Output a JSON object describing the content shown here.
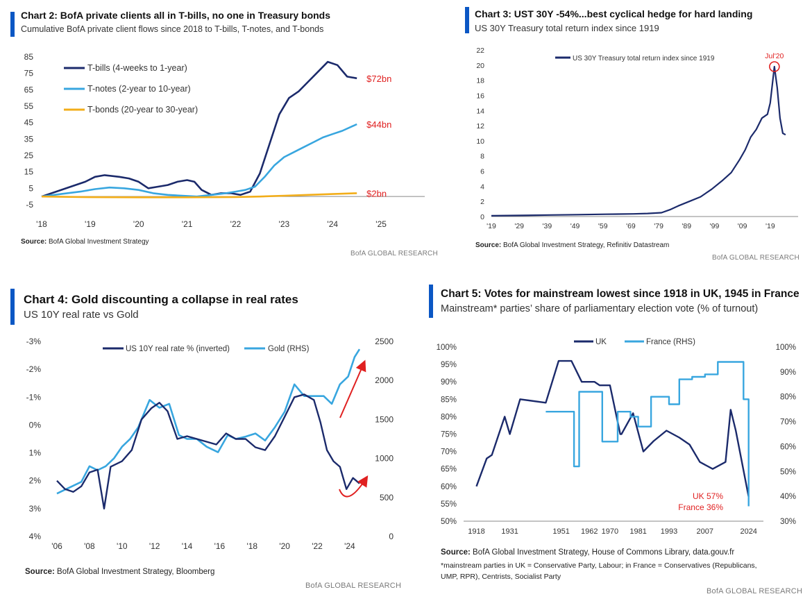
{
  "chart_data": [
    {
      "type": "line",
      "title": "Chart 2: BofA private clients all in T-bills, no one in Treasury bonds",
      "subtitle": "Cumulative BofA private client flows since 2018 to T-bills, T-notes, and T-bonds",
      "source_label": "Source:",
      "source": "BofA Global Investment Strategy",
      "brand": "BofA GLOBAL RESEARCH",
      "xlabel": "",
      "ylabel": "",
      "x_range": [
        2018,
        2025.9
      ],
      "ylim": [
        -5,
        85
      ],
      "yticks": [
        "85",
        "75",
        "65",
        "55",
        "45",
        "35",
        "25",
        "15",
        "5",
        "-5"
      ],
      "ytick_values": [
        85,
        75,
        65,
        55,
        45,
        35,
        25,
        15,
        5,
        -5
      ],
      "xticks": [
        "'18",
        "'19",
        "'20",
        "'21",
        "'22",
        "'23",
        "'24",
        "'25"
      ],
      "xtick_values": [
        2018,
        2019,
        2020,
        2021,
        2022,
        2023,
        2024,
        2025
      ],
      "grid": false,
      "legend_position": "top-left",
      "series": [
        {
          "name": "T-bills (4-weeks to 1-year)",
          "color": "#1b2a6b",
          "x": [
            2018,
            2018.3,
            2018.6,
            2018.9,
            2019.1,
            2019.3,
            2019.6,
            2019.8,
            2020.0,
            2020.2,
            2020.4,
            2020.6,
            2020.8,
            2021.0,
            2021.15,
            2021.3,
            2021.5,
            2021.7,
            2021.9,
            2022.1,
            2022.3,
            2022.5,
            2022.7,
            2022.9,
            2023.1,
            2023.3,
            2023.5,
            2023.7,
            2023.9,
            2024.1,
            2024.3,
            2024.5
          ],
          "y": [
            0,
            3,
            6,
            9,
            12,
            13,
            12,
            11,
            9,
            5,
            6,
            7,
            9,
            10,
            9,
            4,
            1,
            2,
            2,
            1,
            3,
            14,
            32,
            50,
            60,
            64,
            70,
            76,
            82,
            80,
            73,
            72
          ]
        },
        {
          "name": "T-notes (2-year to 10-year)",
          "color": "#38a6df",
          "x": [
            2018,
            2018.4,
            2018.8,
            2019.1,
            2019.4,
            2019.7,
            2020.0,
            2020.3,
            2020.6,
            2020.9,
            2021.2,
            2021.5,
            2021.8,
            2022.0,
            2022.2,
            2022.4,
            2022.6,
            2022.8,
            2023.0,
            2023.2,
            2023.4,
            2023.6,
            2023.8,
            2024.0,
            2024.2,
            2024.5
          ],
          "y": [
            0,
            1.5,
            3,
            4.5,
            5.5,
            5,
            4,
            2,
            1,
            0.5,
            0,
            1,
            2,
            3,
            4,
            6,
            12,
            19,
            24,
            27,
            30,
            33,
            36,
            38,
            40,
            44
          ]
        },
        {
          "name": "T-bonds (20-year to 30-year)",
          "color": "#f2ad19",
          "x": [
            2018,
            2019,
            2020,
            2021,
            2022,
            2022.5,
            2023,
            2023.5,
            2024,
            2024.5
          ],
          "y": [
            0,
            -0.4,
            -0.5,
            -0.5,
            -0.3,
            0,
            0.5,
            1,
            1.5,
            2
          ]
        }
      ],
      "end_labels": [
        "$72bn",
        "$44bn",
        "$2bn"
      ]
    },
    {
      "type": "line",
      "title": "Chart 3: UST 30Y -54%...best cyclical hedge for hard landing",
      "subtitle": "US 30Y Treasury total return index since 1919",
      "source_label": "Source:",
      "source": "BofA Global Investment Strategy, Refinitiv Datastream",
      "brand": "BofA GLOBAL RESEARCH",
      "xlabel": "",
      "ylabel": "",
      "x_range": [
        1919,
        2029
      ],
      "ylim": [
        0,
        22
      ],
      "yticks": [
        "22",
        "20",
        "18",
        "16",
        "14",
        "12",
        "10",
        "8",
        "6",
        "4",
        "2",
        "0"
      ],
      "ytick_values": [
        22,
        20,
        18,
        16,
        14,
        12,
        10,
        8,
        6,
        4,
        2,
        0
      ],
      "xticks": [
        "'19",
        "'29",
        "'39",
        "'49",
        "'59",
        "'69",
        "'79",
        "'89",
        "'99",
        "'09",
        "'19"
      ],
      "xtick_values": [
        1919,
        1929,
        1939,
        1949,
        1959,
        1969,
        1979,
        1989,
        1999,
        2009,
        2019
      ],
      "grid": false,
      "legend_position": "top-center",
      "series": [
        {
          "name": "US 30Y Treasury total return index since 1919",
          "color": "#1b2a6b",
          "x": [
            1919,
            1930,
            1940,
            1950,
            1960,
            1970,
            1975,
            1980,
            1983,
            1986,
            1990,
            1994,
            1998,
            2002,
            2005,
            2008,
            2010,
            2012,
            2014,
            2016,
            2018,
            2019,
            2020.5,
            2021.5,
            2022.5,
            2023.5,
            2024.5
          ],
          "y": [
            0.1,
            0.15,
            0.2,
            0.25,
            0.3,
            0.35,
            0.4,
            0.5,
            0.9,
            1.4,
            2.0,
            2.6,
            3.6,
            4.8,
            5.8,
            7.5,
            8.8,
            10.5,
            11.5,
            13,
            13.5,
            15,
            19.8,
            17,
            13,
            11,
            10.8
          ]
        }
      ],
      "annotation": "Jul'20"
    },
    {
      "type": "line",
      "title": "Chart 4: Gold discounting a collapse in real rates",
      "subtitle": "US 10Y real rate vs Gold",
      "source_label": "Source:",
      "source": "BofA Global Investment Strategy, Bloomberg",
      "brand": "BofA GLOBAL RESEARCH",
      "xlabel": "",
      "ylabel": "",
      "x_range": [
        2005.7,
        2024.9
      ],
      "ylim_left": [
        -3,
        4
      ],
      "left_inverted": true,
      "ylim_right": [
        0,
        2500
      ],
      "yticks_left": [
        "-3%",
        "-2%",
        "-1%",
        "0%",
        "1%",
        "2%",
        "3%",
        "4%"
      ],
      "ytick_values_left": [
        -3,
        -2,
        -1,
        0,
        1,
        2,
        3,
        4
      ],
      "yticks_right": [
        "2500",
        "2000",
        "1500",
        "1000",
        "500",
        "0"
      ],
      "ytick_values_right": [
        2500,
        2000,
        1500,
        1000,
        500,
        0
      ],
      "xticks": [
        "'06",
        "'08",
        "'10",
        "'12",
        "'14",
        "'16",
        "'18",
        "'20",
        "'22",
        "'24"
      ],
      "xtick_values": [
        2006,
        2008,
        2010,
        2012,
        2014,
        2016,
        2018,
        2020,
        2022,
        2024
      ],
      "grid": false,
      "legend_position": "top-center",
      "series": [
        {
          "name": "US 10Y real rate % (inverted)",
          "color": "#1b2a6b",
          "axis": "left",
          "x": [
            2006,
            2006.5,
            2007,
            2007.5,
            2008,
            2008.5,
            2008.9,
            2009.3,
            2010,
            2010.6,
            2011.2,
            2011.8,
            2012.3,
            2012.8,
            2013.4,
            2014,
            2014.6,
            2015.2,
            2015.8,
            2016.4,
            2017,
            2017.6,
            2018.2,
            2018.8,
            2019.4,
            2020,
            2020.6,
            2021.2,
            2021.8,
            2022.2,
            2022.6,
            2023,
            2023.4,
            2023.8,
            2024.2,
            2024.6
          ],
          "y": [
            2,
            2.3,
            2.4,
            2.2,
            1.7,
            1.6,
            3,
            1.5,
            1.3,
            0.9,
            -0.2,
            -0.6,
            -0.8,
            -0.5,
            0.5,
            0.4,
            0.5,
            0.6,
            0.7,
            0.3,
            0.5,
            0.5,
            0.8,
            0.9,
            0.4,
            -0.3,
            -1,
            -1.1,
            -0.9,
            -0.1,
            0.9,
            1.3,
            1.5,
            2.3,
            1.9,
            2.1
          ]
        },
        {
          "name": "Gold (RHS)",
          "color": "#38a6df",
          "axis": "right",
          "x": [
            2006,
            2006.5,
            2007,
            2007.5,
            2008,
            2008.5,
            2009,
            2009.5,
            2010,
            2010.5,
            2011,
            2011.7,
            2012.3,
            2012.9,
            2013.5,
            2014,
            2014.6,
            2015.2,
            2015.9,
            2016.5,
            2017,
            2017.6,
            2018.2,
            2018.8,
            2019.4,
            2020,
            2020.6,
            2021.2,
            2021.8,
            2022.4,
            2022.9,
            2023.4,
            2023.9,
            2024.3,
            2024.6
          ],
          "y": [
            550,
            600,
            650,
            700,
            900,
            850,
            900,
            1000,
            1150,
            1250,
            1400,
            1750,
            1650,
            1700,
            1300,
            1250,
            1250,
            1150,
            1080,
            1300,
            1250,
            1280,
            1320,
            1230,
            1400,
            1600,
            1950,
            1800,
            1800,
            1800,
            1700,
            1950,
            2050,
            2300,
            2400
          ]
        }
      ],
      "arrows": [
        "up-right (gold)",
        "down-up curve (real rate)"
      ]
    },
    {
      "type": "line",
      "title": "Chart 5: Votes for mainstream lowest since 1918 in UK, 1945 in France",
      "subtitle": "Mainstream* parties’ share of parliamentary election vote (% of turnout)",
      "source_label": "Source:",
      "source": "BofA Global Investment Strategy, House of Commons Library, data.gouv.fr",
      "footnote_line1": "*mainstream parties in UK = Conservative Party, Labour; in France = Conservatives (Republicans,",
      "footnote_line2": "UMP, RPR), Centrists, Socialist Party",
      "brand": "BofA GLOBAL RESEARCH",
      "xlabel": "",
      "ylabel": "",
      "x_range": [
        1913,
        2033
      ],
      "ylim_left": [
        50,
        100
      ],
      "ylim_right": [
        30,
        100
      ],
      "yticks_left": [
        "100%",
        "95%",
        "90%",
        "85%",
        "80%",
        "75%",
        "70%",
        "65%",
        "60%",
        "55%",
        "50%"
      ],
      "ytick_values_left": [
        100,
        95,
        90,
        85,
        80,
        75,
        70,
        65,
        60,
        55,
        50
      ],
      "yticks_right": [
        "100%",
        "90%",
        "80%",
        "70%",
        "60%",
        "50%",
        "40%",
        "30%"
      ],
      "ytick_values_right": [
        100,
        90,
        80,
        70,
        60,
        50,
        40,
        30
      ],
      "xticks": [
        "1918",
        "1931",
        "1951",
        "1962",
        "1970",
        "1981",
        "1993",
        "2007",
        "2024"
      ],
      "xtick_values": [
        1918,
        1931,
        1951,
        1962,
        1970,
        1981,
        1993,
        2007,
        2024
      ],
      "grid": false,
      "legend_position": "top-center",
      "series": [
        {
          "name": "UK",
          "color": "#1b2a6b",
          "axis": "left",
          "x": [
            1918,
            1922,
            1924,
            1929,
            1931,
            1935,
            1945,
            1950,
            1951,
            1955,
            1959,
            1964,
            1966,
            1970,
            1974,
            1974.5,
            1979,
            1983,
            1987,
            1992,
            1997,
            2001,
            2005,
            2010,
            2015,
            2017,
            2019,
            2024
          ],
          "y": [
            60,
            68,
            69,
            80,
            75,
            85,
            84,
            96,
            96,
            96,
            90,
            90,
            89,
            89,
            75,
            75,
            81,
            70,
            73,
            76,
            74,
            72,
            67,
            65,
            67,
            82,
            76,
            57
          ]
        },
        {
          "name": "France (RHS)",
          "color": "#38a6df",
          "axis": "right",
          "x": [
            1945,
            1951,
            1956,
            1958,
            1962,
            1967,
            1968,
            1973,
            1978,
            1981,
            1986,
            1988,
            1993,
            1997,
            2002,
            2007,
            2012,
            2017,
            2022,
            2024
          ],
          "y": [
            74,
            74,
            52,
            82,
            82,
            62,
            62,
            74,
            72,
            68,
            80,
            80,
            77,
            87,
            88,
            89,
            94,
            94,
            79,
            36
          ]
        }
      ],
      "end_labels": [
        "UK 57%",
        "France 36%"
      ]
    }
  ]
}
